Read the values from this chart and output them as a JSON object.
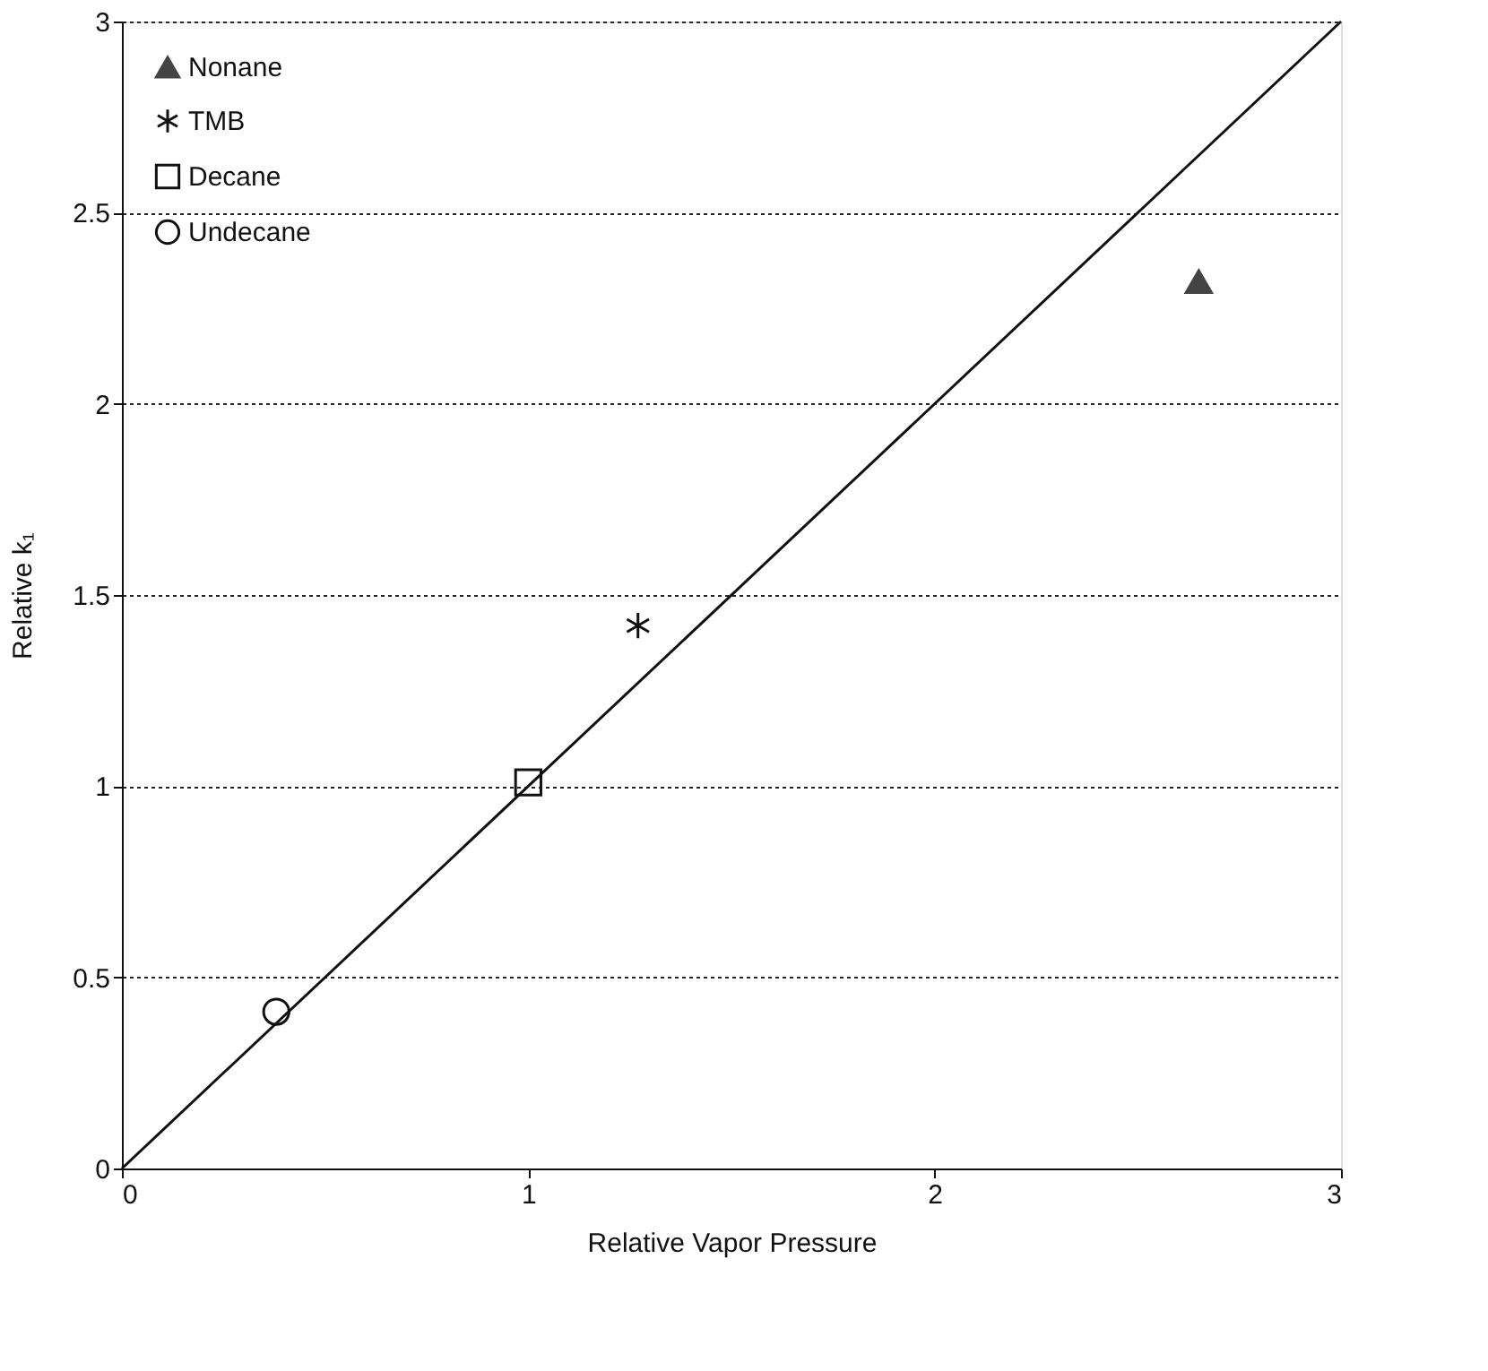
{
  "chart_data": {
    "type": "scatter",
    "xlabel": "Relative Vapor Pressure",
    "ylabel": "Relative k₁",
    "xlim": [
      0,
      3
    ],
    "ylim": [
      0,
      3
    ],
    "xticks": [
      0,
      1,
      2,
      3
    ],
    "yticks": [
      0,
      0.5,
      1,
      1.5,
      2,
      2.5,
      3
    ],
    "grid": "y",
    "legend": "top left",
    "series": [
      {
        "name": "Nonane",
        "color": "#444444",
        "marker": "triangle",
        "x": [
          2.65
        ],
        "values": [
          2.32
        ]
      },
      {
        "name": "TMB",
        "color": "#111111",
        "marker": "cross",
        "x": [
          1.27
        ],
        "values": [
          1.42
        ]
      },
      {
        "name": "Decane",
        "color": "#111111",
        "marker": "square",
        "x": [
          1.0
        ],
        "values": [
          1.01
        ]
      },
      {
        "name": "Undecane",
        "color": "#111111",
        "marker": "circle",
        "x": [
          0.38
        ],
        "values": [
          0.41
        ]
      },
      {
        "type": "line",
        "color": "#111111",
        "marker": "none",
        "x": [
          0,
          3
        ],
        "values": [
          0,
          3
        ]
      }
    ]
  }
}
